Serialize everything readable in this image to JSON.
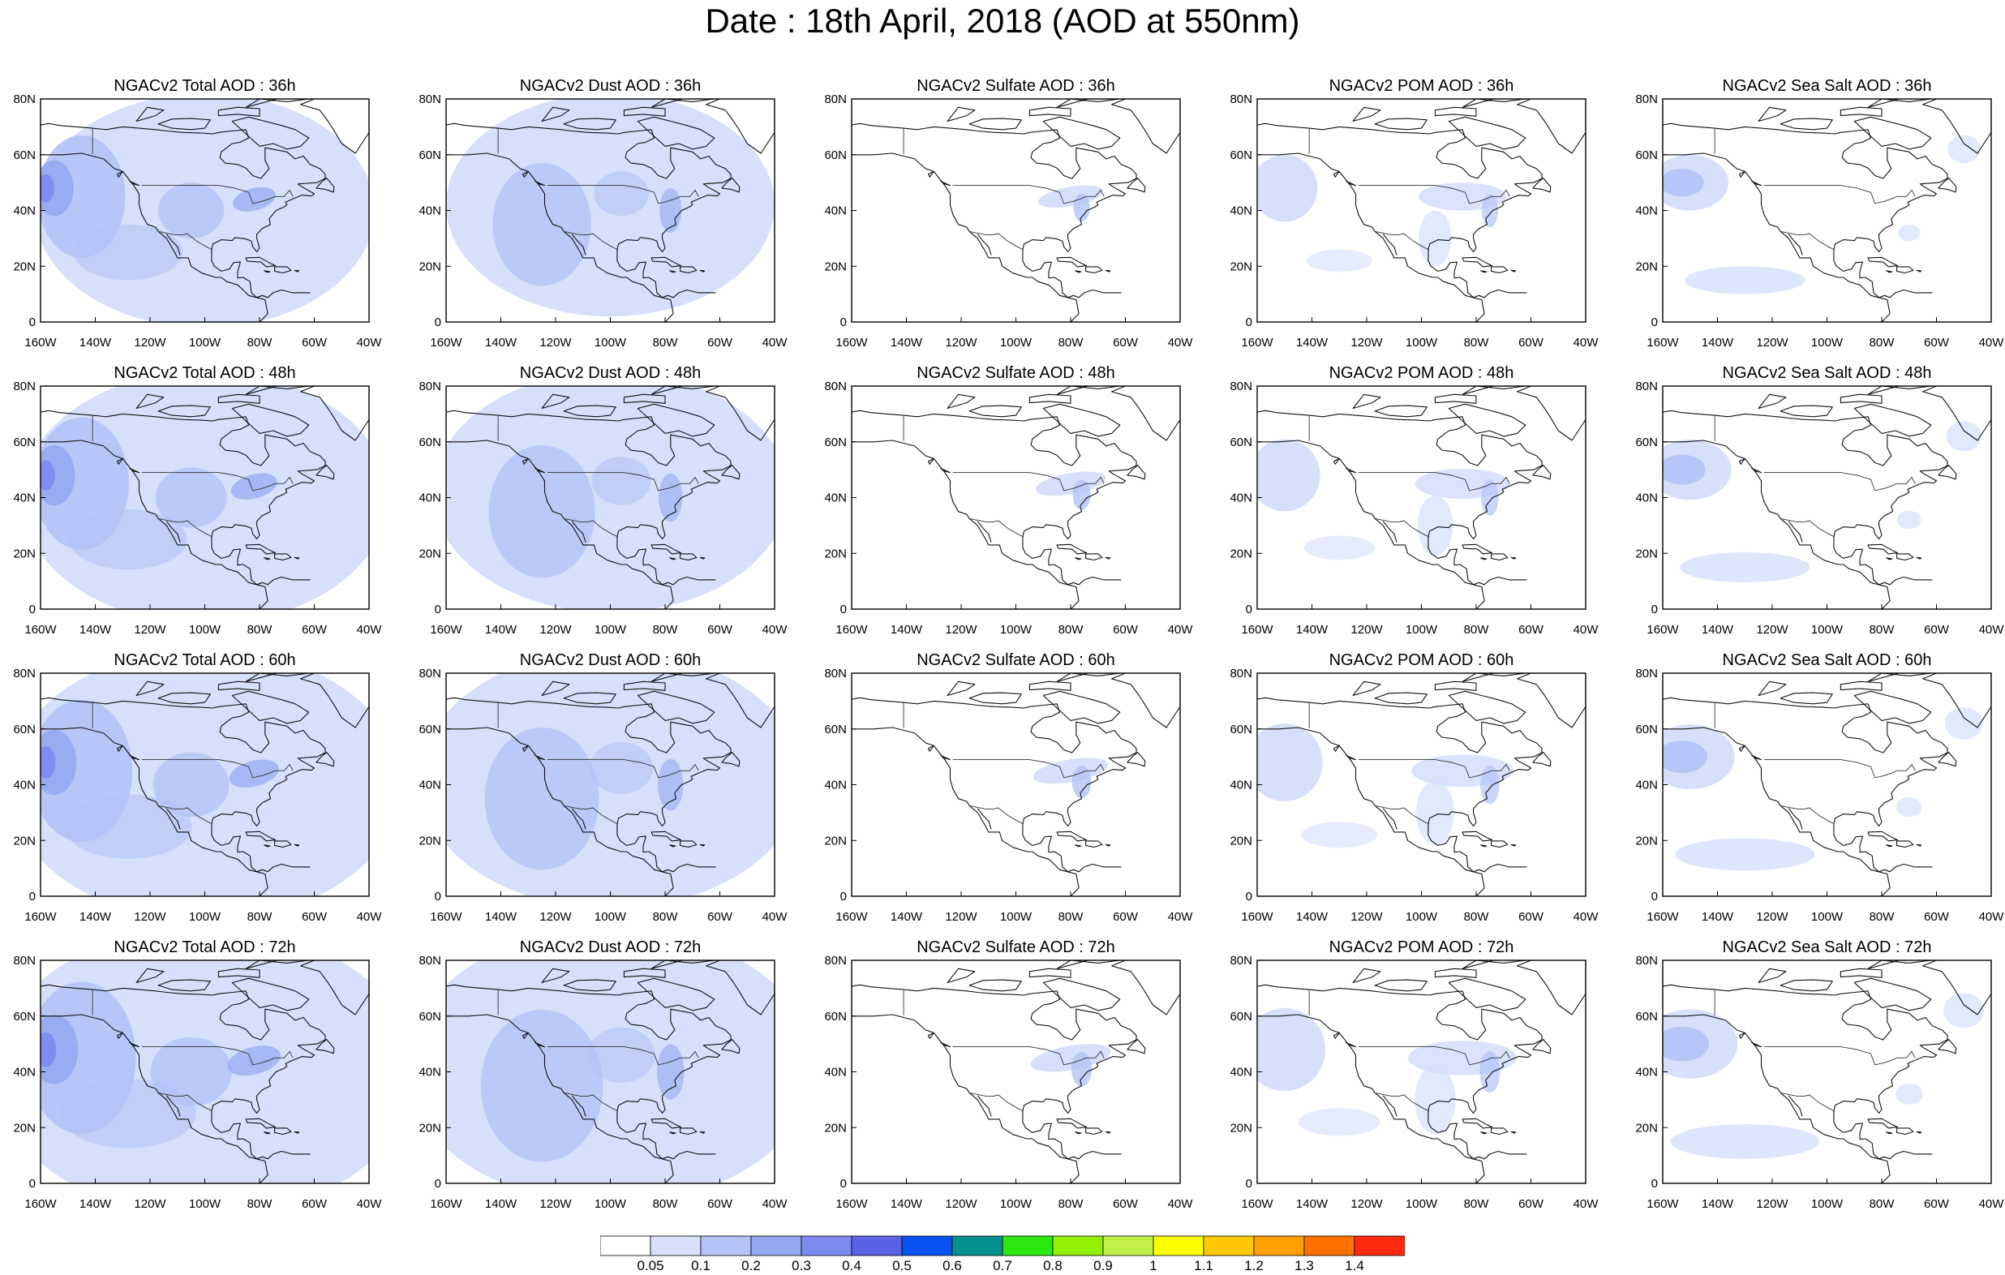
{
  "title": "Date : 18th April, 2018 (AOD at 550nm)",
  "map": {
    "lon_range": [
      -160,
      -40
    ],
    "lat_range": [
      0,
      80
    ],
    "x_ticks": [
      "160W",
      "140W",
      "120W",
      "100W",
      "80W",
      "60W",
      "40W"
    ],
    "y_ticks": [
      "0",
      "20N",
      "40N",
      "60N",
      "80N"
    ]
  },
  "panel_rows": [
    [
      "NGACv2 Total AOD : 36h",
      "NGACv2 Dust AOD : 36h",
      "NGACv2 Sulfate AOD : 36h",
      "NGACv2 POM AOD : 36h",
      "NGACv2 Sea Salt AOD : 36h"
    ],
    [
      "NGACv2 Total AOD : 48h",
      "NGACv2 Dust AOD : 48h",
      "NGACv2 Sulfate AOD : 48h",
      "NGACv2 POM AOD : 48h",
      "NGACv2 Sea Salt AOD : 48h"
    ],
    [
      "NGACv2 Total AOD : 60h",
      "NGACv2 Dust AOD : 60h",
      "NGACv2 Sulfate AOD : 60h",
      "NGACv2 POM AOD : 60h",
      "NGACv2 Sea Salt AOD : 60h"
    ],
    [
      "NGACv2 Total AOD : 72h",
      "NGACv2 Dust AOD : 72h",
      "NGACv2 Sulfate AOD : 72h",
      "NGACv2 POM AOD : 72h",
      "NGACv2 Sea Salt  AOD : 72h"
    ]
  ],
  "colorbar": {
    "labels": [
      "0.05",
      "0.1",
      "0.2",
      "0.3",
      "0.4",
      "0.5",
      "0.6",
      "0.7",
      "0.8",
      "0.9",
      "1",
      "1.1",
      "1.2",
      "1.3",
      "1.4"
    ],
    "colors": [
      "#ffffff",
      "#d6e0fb",
      "#b3c3f6",
      "#93a8f1",
      "#7b8bef",
      "#5a63e6",
      "#0a52f0",
      "#04908e",
      "#2be80f",
      "#93f000",
      "#c3f048",
      "#ffff00",
      "#ffc800",
      "#ff9f00",
      "#ff7000",
      "#ff2a10"
    ]
  }
}
